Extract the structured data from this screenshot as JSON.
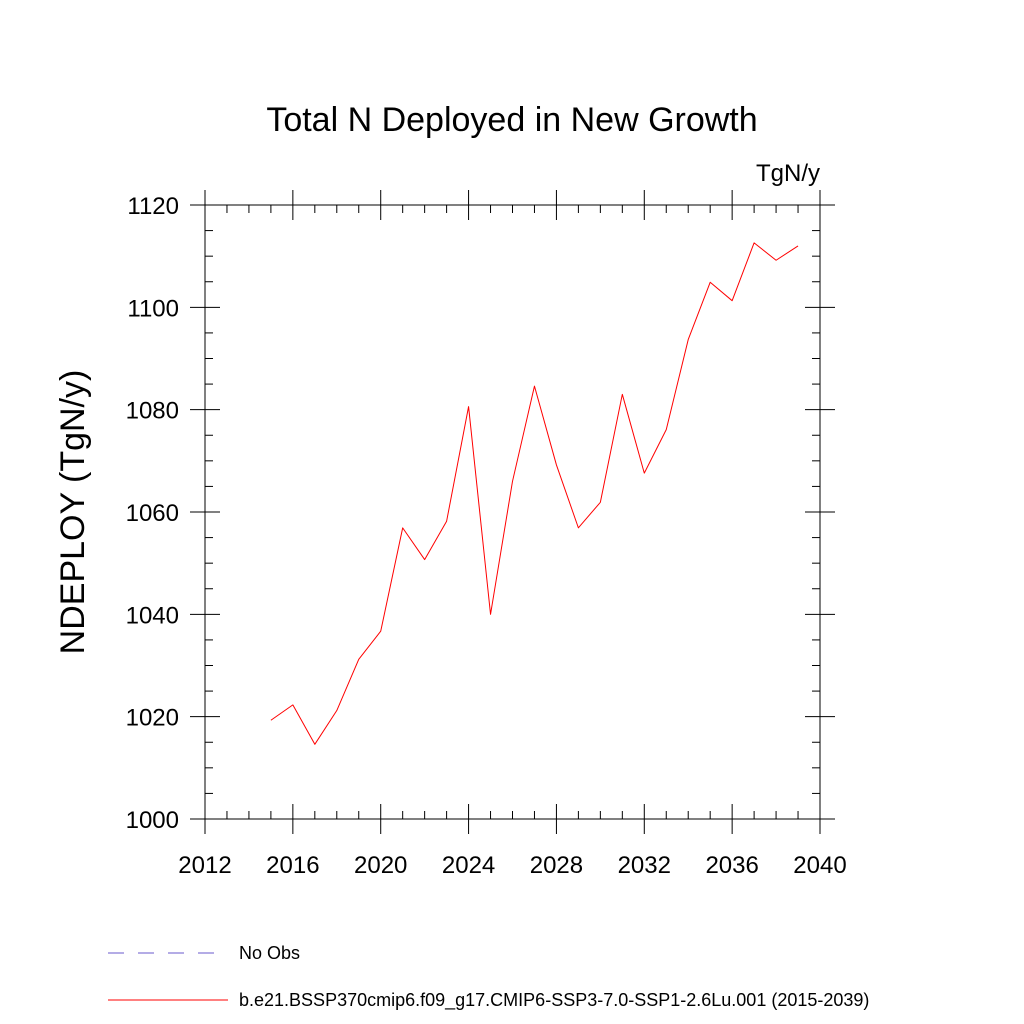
{
  "chart_data": {
    "type": "line",
    "title": "Total N Deployed in New Growth",
    "units_label": "TgN/y",
    "ylabel": "NDEPLOY  (TgN/y)",
    "xlabel": "",
    "xlim": [
      2012,
      2040
    ],
    "ylim": [
      1000,
      1120
    ],
    "x_ticks": [
      2012,
      2016,
      2020,
      2024,
      2028,
      2032,
      2036,
      2040
    ],
    "y_ticks": [
      1000,
      1020,
      1040,
      1060,
      1080,
      1100,
      1120
    ],
    "x_minor_step": 1,
    "y_minor_step": 5,
    "grid": false,
    "legend_position": "bottom-left",
    "series": [
      {
        "name": "No Obs",
        "color": "#6a5acd",
        "dash": "dashed",
        "x": [],
        "values": []
      },
      {
        "name": "b.e21.BSSP370cmip6.f09_g17.CMIP6-SSP3-7.0-SSP1-2.6Lu.001 (2015-2039)",
        "color": "#ff0000",
        "dash": "solid",
        "x": [
          2015,
          2016,
          2017,
          2018,
          2019,
          2020,
          2021,
          2022,
          2023,
          2024,
          2025,
          2026,
          2027,
          2028,
          2029,
          2030,
          2031,
          2032,
          2033,
          2034,
          2035,
          2036,
          2037,
          2038,
          2039
        ],
        "values": [
          1019.3,
          1022.3,
          1014.6,
          1021.2,
          1031.2,
          1036.7,
          1056.9,
          1050.7,
          1058.2,
          1080.6,
          1040.0,
          1066.0,
          1084.6,
          1069.2,
          1056.9,
          1061.9,
          1083.0,
          1067.6,
          1076.1,
          1093.7,
          1104.9,
          1101.3,
          1112.6,
          1109.2,
          1112.0
        ]
      }
    ]
  }
}
